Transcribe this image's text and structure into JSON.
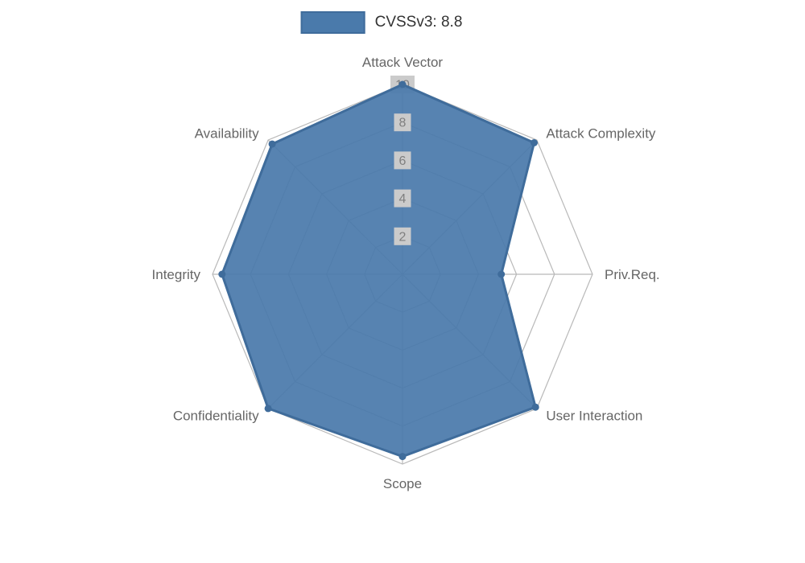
{
  "chart_data": {
    "type": "radar",
    "title": "",
    "legend_position": "top",
    "categories": [
      "Attack Vector",
      "Attack Complexity",
      "Priv.Req.",
      "User Interaction",
      "Scope",
      "Confidentiality",
      "Integrity",
      "Availability"
    ],
    "series": [
      {
        "name": "CVSSv3: 8.8",
        "values": [
          10,
          9.8,
          5.2,
          9.9,
          9.6,
          10,
          9.5,
          9.7
        ]
      }
    ],
    "ticks": [
      2,
      4,
      6,
      8,
      10
    ],
    "rmin": 0,
    "rmax": 10,
    "grid": true,
    "colors": {
      "fill": "#4a7aab",
      "stroke": "#3f6c9b",
      "point": "#3f6c9b",
      "grid_line": "#b9b9b9",
      "tick_text": "#7f7f7f",
      "tick_backdrop": "#cbcbcb",
      "axis_label": "#666666",
      "legend_text": "#333333",
      "background": "#ffffff"
    }
  }
}
